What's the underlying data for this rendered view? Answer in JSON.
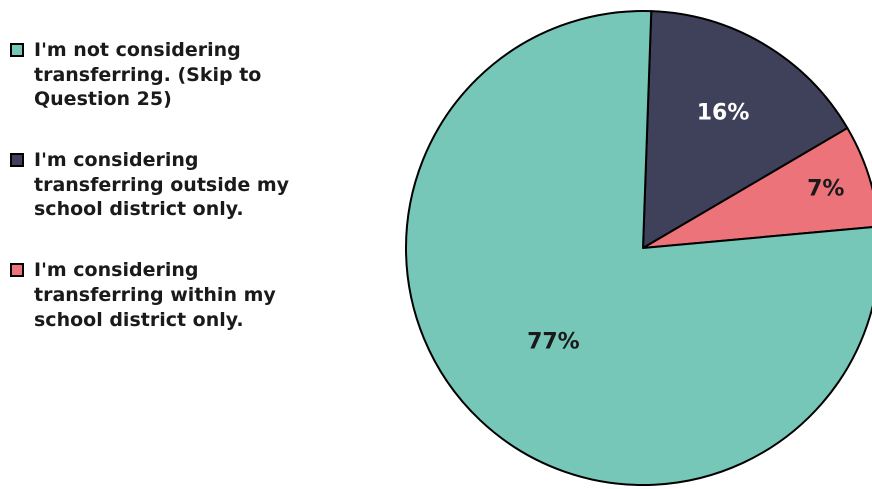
{
  "chart_data": {
    "type": "pie",
    "title": "",
    "slices": [
      {
        "label": "I'm not considering transferring. (Skip to Question 25)",
        "value": 77,
        "display": "77%",
        "color": "#76c7b7",
        "text_color": "#1a1a1a"
      },
      {
        "label": "I'm considering transferring outside my school district only.",
        "value": 16,
        "display": "16%",
        "color": "#3f4059",
        "text_color": "#ffffff"
      },
      {
        "label": "I'm considering transferring within my school district only.",
        "value": 7,
        "display": "7%",
        "color": "#ec737a",
        "text_color": "#1a1a1a"
      }
    ],
    "legend_position": "left"
  }
}
